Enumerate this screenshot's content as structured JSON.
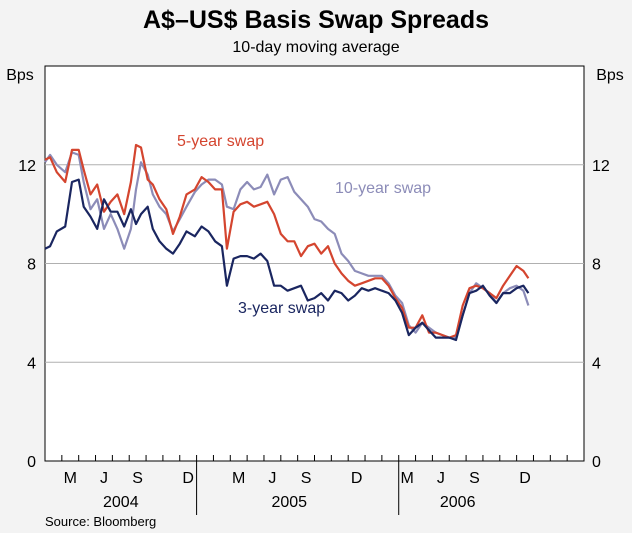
{
  "chart_data": {
    "type": "line",
    "title": "A$–US$ Basis Swap Spreads",
    "subtitle": "10-day moving average",
    "ylabel_left": "Bps",
    "ylabel_right": "Bps",
    "ylim": [
      0,
      16
    ],
    "yticks": [
      0,
      4,
      8,
      12
    ],
    "x_unit": "months since Apr 2004",
    "xlim": [
      0,
      32
    ],
    "month_ticks": [
      {
        "label": "M",
        "x": 1
      },
      {
        "label": "J",
        "x": 3
      },
      {
        "label": "S",
        "x": 5
      },
      {
        "label": "D",
        "x": 8
      },
      {
        "label": "M",
        "x": 11
      },
      {
        "label": "J",
        "x": 13
      },
      {
        "label": "S",
        "x": 15
      },
      {
        "label": "D",
        "x": 18
      },
      {
        "label": "M",
        "x": 21
      },
      {
        "label": "J",
        "x": 23
      },
      {
        "label": "S",
        "x": 25
      },
      {
        "label": "D",
        "x": 28
      }
    ],
    "years": [
      {
        "label": "2004",
        "x": 4
      },
      {
        "label": "2005",
        "x": 14
      },
      {
        "label": "2006",
        "x": 24
      }
    ],
    "series": [
      {
        "name": "10-year swap",
        "color": "#8c8cb8",
        "points": [
          [
            0,
            12.1
          ],
          [
            0.3,
            12.4
          ],
          [
            0.7,
            12.0
          ],
          [
            1.2,
            11.7
          ],
          [
            1.6,
            12.5
          ],
          [
            2.0,
            12.4
          ],
          [
            2.3,
            11.3
          ],
          [
            2.7,
            10.2
          ],
          [
            3.1,
            10.6
          ],
          [
            3.5,
            9.4
          ],
          [
            3.9,
            10.0
          ],
          [
            4.3,
            9.4
          ],
          [
            4.7,
            8.6
          ],
          [
            5.1,
            9.4
          ],
          [
            5.4,
            11.0
          ],
          [
            5.7,
            12.1
          ],
          [
            6.1,
            11.6
          ],
          [
            6.4,
            10.8
          ],
          [
            6.8,
            10.3
          ],
          [
            7.2,
            10.0
          ],
          [
            7.6,
            9.3
          ],
          [
            8.0,
            9.8
          ],
          [
            8.4,
            10.3
          ],
          [
            8.9,
            10.9
          ],
          [
            9.3,
            11.2
          ],
          [
            9.7,
            11.4
          ],
          [
            10.1,
            11.4
          ],
          [
            10.5,
            11.2
          ],
          [
            10.8,
            10.3
          ],
          [
            11.2,
            10.2
          ],
          [
            11.6,
            11.0
          ],
          [
            12.0,
            11.3
          ],
          [
            12.4,
            11.0
          ],
          [
            12.8,
            11.1
          ],
          [
            13.2,
            11.6
          ],
          [
            13.6,
            10.8
          ],
          [
            14.0,
            11.4
          ],
          [
            14.4,
            11.5
          ],
          [
            14.8,
            10.9
          ],
          [
            15.2,
            10.6
          ],
          [
            15.6,
            10.3
          ],
          [
            16.0,
            9.8
          ],
          [
            16.4,
            9.7
          ],
          [
            16.8,
            9.4
          ],
          [
            17.2,
            9.2
          ],
          [
            17.6,
            8.4
          ],
          [
            18.0,
            8.1
          ],
          [
            18.4,
            7.7
          ],
          [
            18.8,
            7.6
          ],
          [
            19.2,
            7.5
          ],
          [
            19.6,
            7.5
          ],
          [
            20.0,
            7.5
          ],
          [
            20.4,
            7.2
          ],
          [
            20.8,
            6.7
          ],
          [
            21.2,
            6.4
          ],
          [
            21.6,
            5.5
          ],
          [
            22.0,
            5.2
          ],
          [
            22.4,
            5.6
          ],
          [
            22.8,
            5.4
          ],
          [
            23.2,
            5.2
          ],
          [
            23.6,
            5.1
          ],
          [
            24.0,
            5.0
          ],
          [
            24.4,
            5.0
          ],
          [
            24.8,
            5.9
          ],
          [
            25.2,
            6.8
          ],
          [
            25.6,
            7.2
          ],
          [
            26.0,
            7.0
          ],
          [
            26.4,
            6.8
          ],
          [
            26.8,
            6.4
          ],
          [
            27.2,
            6.8
          ],
          [
            27.6,
            7.0
          ],
          [
            28.0,
            7.1
          ],
          [
            28.4,
            6.9
          ],
          [
            28.7,
            6.3
          ]
        ]
      },
      {
        "name": "5-year swap",
        "color": "#d4452f",
        "points": [
          [
            0,
            12.2
          ],
          [
            0.3,
            12.3
          ],
          [
            0.7,
            11.7
          ],
          [
            1.2,
            11.3
          ],
          [
            1.6,
            12.6
          ],
          [
            2.0,
            12.6
          ],
          [
            2.3,
            11.8
          ],
          [
            2.7,
            10.8
          ],
          [
            3.1,
            11.2
          ],
          [
            3.5,
            10.1
          ],
          [
            3.9,
            10.5
          ],
          [
            4.3,
            10.8
          ],
          [
            4.7,
            10.0
          ],
          [
            5.1,
            11.3
          ],
          [
            5.4,
            12.8
          ],
          [
            5.7,
            12.7
          ],
          [
            6.1,
            11.4
          ],
          [
            6.4,
            11.2
          ],
          [
            6.8,
            10.6
          ],
          [
            7.2,
            10.2
          ],
          [
            7.6,
            9.2
          ],
          [
            8.0,
            9.9
          ],
          [
            8.4,
            10.8
          ],
          [
            8.9,
            11.0
          ],
          [
            9.3,
            11.5
          ],
          [
            9.7,
            11.3
          ],
          [
            10.1,
            11.0
          ],
          [
            10.5,
            11.0
          ],
          [
            10.8,
            8.6
          ],
          [
            11.2,
            10.1
          ],
          [
            11.6,
            10.4
          ],
          [
            12.0,
            10.5
          ],
          [
            12.4,
            10.3
          ],
          [
            12.8,
            10.4
          ],
          [
            13.2,
            10.5
          ],
          [
            13.6,
            10.0
          ],
          [
            14.0,
            9.2
          ],
          [
            14.4,
            8.9
          ],
          [
            14.8,
            8.9
          ],
          [
            15.2,
            8.3
          ],
          [
            15.6,
            8.7
          ],
          [
            16.0,
            8.8
          ],
          [
            16.4,
            8.4
          ],
          [
            16.8,
            8.7
          ],
          [
            17.2,
            8.0
          ],
          [
            17.6,
            7.6
          ],
          [
            18.0,
            7.3
          ],
          [
            18.4,
            7.1
          ],
          [
            18.8,
            7.2
          ],
          [
            19.2,
            7.3
          ],
          [
            19.6,
            7.4
          ],
          [
            20.0,
            7.4
          ],
          [
            20.4,
            7.1
          ],
          [
            20.8,
            6.6
          ],
          [
            21.2,
            6.2
          ],
          [
            21.6,
            5.4
          ],
          [
            22.0,
            5.4
          ],
          [
            22.4,
            5.9
          ],
          [
            22.8,
            5.2
          ],
          [
            23.2,
            5.2
          ],
          [
            23.6,
            5.1
          ],
          [
            24.0,
            5.0
          ],
          [
            24.4,
            5.1
          ],
          [
            24.8,
            6.3
          ],
          [
            25.2,
            7.0
          ],
          [
            25.6,
            7.1
          ],
          [
            26.0,
            7.0
          ],
          [
            26.4,
            6.8
          ],
          [
            26.8,
            6.6
          ],
          [
            27.2,
            7.1
          ],
          [
            27.6,
            7.5
          ],
          [
            28.0,
            7.9
          ],
          [
            28.4,
            7.7
          ],
          [
            28.7,
            7.4
          ]
        ]
      },
      {
        "name": "3-year swap",
        "color": "#1a2660",
        "points": [
          [
            0,
            8.6
          ],
          [
            0.3,
            8.7
          ],
          [
            0.7,
            9.3
          ],
          [
            1.2,
            9.5
          ],
          [
            1.6,
            11.3
          ],
          [
            2.0,
            11.4
          ],
          [
            2.3,
            10.3
          ],
          [
            2.7,
            9.9
          ],
          [
            3.1,
            9.4
          ],
          [
            3.5,
            10.6
          ],
          [
            3.9,
            10.1
          ],
          [
            4.3,
            10.1
          ],
          [
            4.7,
            9.5
          ],
          [
            5.1,
            10.2
          ],
          [
            5.4,
            9.6
          ],
          [
            5.7,
            10.0
          ],
          [
            6.1,
            10.3
          ],
          [
            6.4,
            9.4
          ],
          [
            6.8,
            8.9
          ],
          [
            7.2,
            8.6
          ],
          [
            7.6,
            8.4
          ],
          [
            8.0,
            8.8
          ],
          [
            8.4,
            9.3
          ],
          [
            8.9,
            9.1
          ],
          [
            9.3,
            9.5
          ],
          [
            9.7,
            9.3
          ],
          [
            10.1,
            8.9
          ],
          [
            10.5,
            8.7
          ],
          [
            10.8,
            7.1
          ],
          [
            11.2,
            8.2
          ],
          [
            11.6,
            8.3
          ],
          [
            12.0,
            8.3
          ],
          [
            12.4,
            8.2
          ],
          [
            12.8,
            8.4
          ],
          [
            13.2,
            8.1
          ],
          [
            13.6,
            7.1
          ],
          [
            14.0,
            7.1
          ],
          [
            14.4,
            6.9
          ],
          [
            14.8,
            7.0
          ],
          [
            15.2,
            7.1
          ],
          [
            15.6,
            6.5
          ],
          [
            16.0,
            6.6
          ],
          [
            16.4,
            6.8
          ],
          [
            16.8,
            6.5
          ],
          [
            17.2,
            6.9
          ],
          [
            17.6,
            6.8
          ],
          [
            18.0,
            6.5
          ],
          [
            18.4,
            6.7
          ],
          [
            18.8,
            7.0
          ],
          [
            19.2,
            6.9
          ],
          [
            19.6,
            7.0
          ],
          [
            20.0,
            6.9
          ],
          [
            20.4,
            6.8
          ],
          [
            20.8,
            6.5
          ],
          [
            21.2,
            6.0
          ],
          [
            21.6,
            5.1
          ],
          [
            22.0,
            5.4
          ],
          [
            22.4,
            5.6
          ],
          [
            22.8,
            5.3
          ],
          [
            23.2,
            5.0
          ],
          [
            23.6,
            5.0
          ],
          [
            24.0,
            5.0
          ],
          [
            24.4,
            4.9
          ],
          [
            24.8,
            5.9
          ],
          [
            25.2,
            6.8
          ],
          [
            25.6,
            6.9
          ],
          [
            26.0,
            7.1
          ],
          [
            26.4,
            6.7
          ],
          [
            26.8,
            6.4
          ],
          [
            27.2,
            6.8
          ],
          [
            27.6,
            6.8
          ],
          [
            28.0,
            7.0
          ],
          [
            28.4,
            7.1
          ],
          [
            28.7,
            6.8
          ]
        ]
      }
    ],
    "annotations": [
      {
        "text": "5-year swap",
        "series": "5-year swap"
      },
      {
        "text": "10-year swap",
        "series": "10-year swap"
      },
      {
        "text": "3-year swap",
        "series": "3-year swap"
      }
    ],
    "source": "Source: Bloomberg"
  }
}
